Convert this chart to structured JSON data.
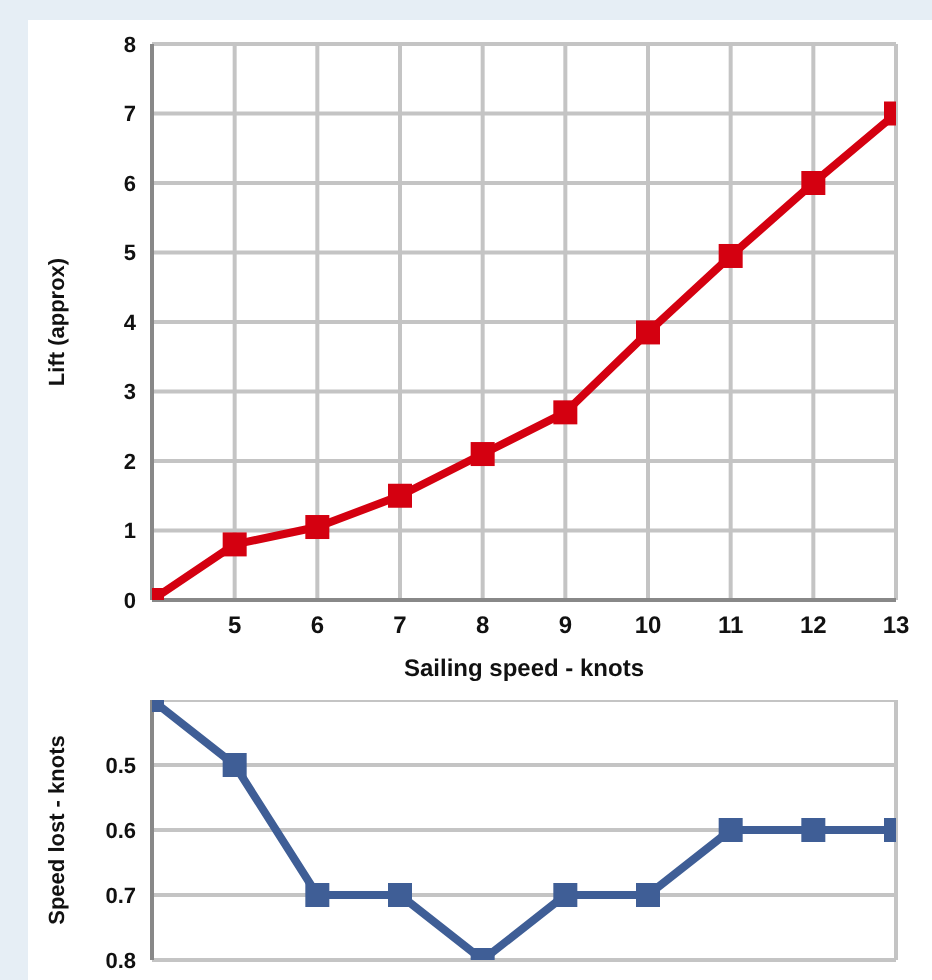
{
  "chart_data": [
    {
      "type": "line",
      "xlabel": "Sailing speed - knots",
      "ylabel": "Lift (approx)",
      "x": [
        4,
        5,
        6,
        7,
        8,
        9,
        10,
        11,
        12,
        13
      ],
      "series": [
        {
          "color": "#d40010",
          "values": [
            0,
            0.8,
            1.05,
            1.5,
            2.1,
            2.7,
            3.85,
            4.95,
            6.0,
            7.0
          ]
        }
      ],
      "xlim": [
        4,
        13
      ],
      "xticks": [
        5,
        6,
        7,
        8,
        9,
        10,
        11,
        12,
        13
      ],
      "ylim": [
        0,
        8
      ],
      "yticks": [
        0,
        1,
        2,
        3,
        4,
        5,
        6,
        7,
        8
      ],
      "grid": true,
      "marker": "square",
      "line_style": "solid"
    },
    {
      "type": "line",
      "ylabel": "Speed lost - knots",
      "x": [
        4,
        5,
        6,
        7,
        8,
        9,
        10,
        11,
        12,
        13
      ],
      "series": [
        {
          "color": "#3f5e96",
          "values": [
            0.4,
            0.5,
            0.7,
            0.7,
            0.8,
            0.7,
            0.7,
            0.6,
            0.6,
            0.6
          ]
        }
      ],
      "xlim": [
        4,
        13
      ],
      "xticks": [
        5,
        6,
        7,
        8,
        9,
        10,
        11,
        12,
        13
      ],
      "ylim": [
        0.8,
        0.4
      ],
      "yticks": [
        0.5,
        0.6,
        0.7,
        0.8
      ],
      "grid": true,
      "marker": "square",
      "line_style": "solid",
      "tick_labels": "y"
    }
  ]
}
